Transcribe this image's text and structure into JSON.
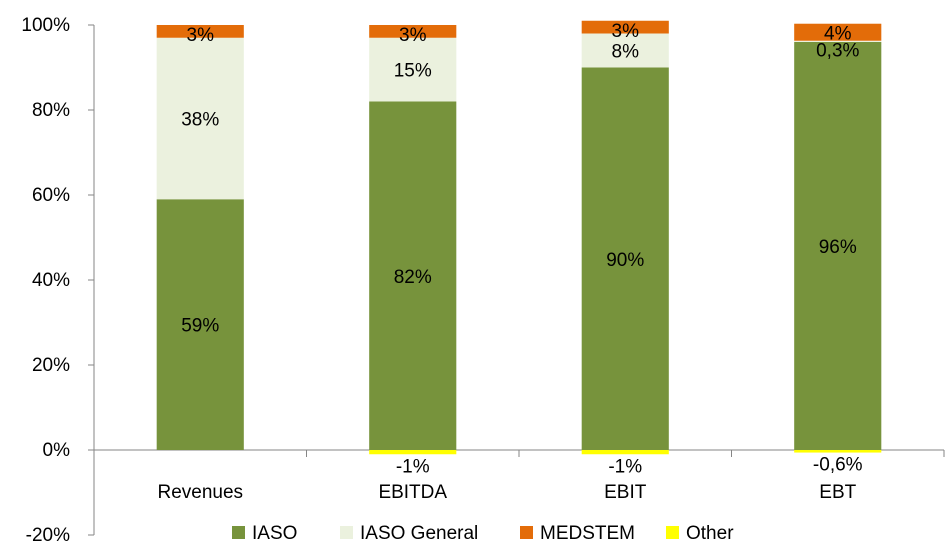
{
  "chart_data": {
    "type": "bar",
    "stacked": true,
    "categories": [
      "Revenues",
      "EBITDA",
      "EBIT",
      "EBT"
    ],
    "series": [
      {
        "name": "IASO",
        "color": "#77933c",
        "values": [
          59,
          82,
          90,
          96
        ],
        "labels": [
          "59%",
          "82%",
          "90%",
          "96%"
        ]
      },
      {
        "name": "IASO General",
        "color": "#ebf1de",
        "values": [
          38,
          15,
          8,
          0.3
        ],
        "labels": [
          "38%",
          "15%",
          "8%",
          "0,3%"
        ]
      },
      {
        "name": "MEDSTEM",
        "color": "#e36c09",
        "values": [
          3,
          3,
          3,
          4
        ],
        "labels": [
          "3%",
          "3%",
          "3%",
          "4%"
        ]
      },
      {
        "name": "Other",
        "color": "#ffff00",
        "values": [
          0,
          -1,
          -1,
          -0.6
        ],
        "labels": [
          "",
          "-1%",
          "-1%",
          "-0,6%"
        ]
      }
    ],
    "ylim": [
      -20,
      100
    ],
    "yticks": [
      -20,
      0,
      20,
      40,
      60,
      80,
      100
    ],
    "ytick_labels": [
      "-20%",
      "0%",
      "20%",
      "40%",
      "60%",
      "80%",
      "100%"
    ],
    "legend_position": "bottom",
    "grid": false
  }
}
